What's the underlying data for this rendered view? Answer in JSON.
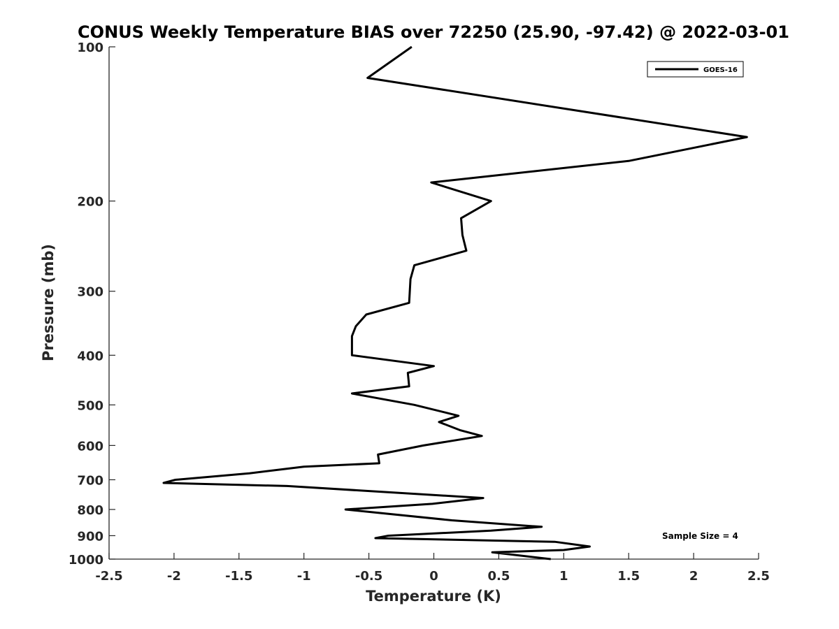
{
  "chart_data": {
    "type": "line",
    "title": "CONUS Weekly Temperature BIAS over 72250 (25.90, -97.42) @ 2022-03-01",
    "xlabel": "Temperature (K)",
    "ylabel": "Pressure (mb)",
    "xlim": [
      -2.5,
      2.5
    ],
    "ylim": [
      1000,
      100
    ],
    "y_scale": "log",
    "y_reversed": true,
    "grid": false,
    "legend_position": "top-right",
    "x_ticks": [
      -2.5,
      -2,
      -1.5,
      -1,
      -0.5,
      0,
      0.5,
      1,
      1.5,
      2,
      2.5
    ],
    "x_tick_labels": [
      "-2.5",
      "-2",
      "-1.5",
      "-1",
      "-0.5",
      "0",
      "0.5",
      "1",
      "1.5",
      "2",
      "2.5"
    ],
    "y_ticks": [
      100,
      200,
      300,
      400,
      500,
      600,
      700,
      800,
      900,
      1000
    ],
    "y_tick_labels": [
      "100",
      "200",
      "300",
      "400",
      "500",
      "600",
      "700",
      "800",
      "900",
      "1000"
    ],
    "series": [
      {
        "name": "GOES-16",
        "color": "#000000",
        "points": [
          [
            -0.17,
            100
          ],
          [
            -0.51,
            115
          ],
          [
            2.41,
            150
          ],
          [
            1.5,
            167
          ],
          [
            -0.02,
            184
          ],
          [
            0.44,
            200
          ],
          [
            0.21,
            216
          ],
          [
            0.22,
            233
          ],
          [
            0.25,
            250
          ],
          [
            -0.15,
            267
          ],
          [
            -0.18,
            284
          ],
          [
            -0.19,
            316
          ],
          [
            -0.52,
            333
          ],
          [
            -0.6,
            351
          ],
          [
            -0.63,
            367
          ],
          [
            -0.63,
            400
          ],
          [
            0.0,
            420
          ],
          [
            -0.2,
            433
          ],
          [
            -0.19,
            460
          ],
          [
            -0.63,
            475
          ],
          [
            -0.15,
            500
          ],
          [
            0.19,
            525
          ],
          [
            0.04,
            540
          ],
          [
            0.2,
            560
          ],
          [
            0.37,
            575
          ],
          [
            -0.08,
            600
          ],
          [
            -0.43,
            625
          ],
          [
            -0.42,
            650
          ],
          [
            -1.0,
            660
          ],
          [
            -1.42,
            680
          ],
          [
            -1.99,
            700
          ],
          [
            -2.08,
            710
          ],
          [
            -1.13,
            720
          ],
          [
            0.38,
            760
          ],
          [
            -0.01,
            780
          ],
          [
            -0.68,
            800
          ],
          [
            0.14,
            840
          ],
          [
            0.83,
            865
          ],
          [
            0.44,
            880
          ],
          [
            -0.35,
            900
          ],
          [
            -0.45,
            910
          ],
          [
            0.93,
            925
          ],
          [
            1.2,
            945
          ],
          [
            1.0,
            960
          ],
          [
            0.45,
            970
          ],
          [
            0.9,
            1000
          ]
        ]
      }
    ],
    "annotations": [
      "Sample Size = 4"
    ]
  }
}
